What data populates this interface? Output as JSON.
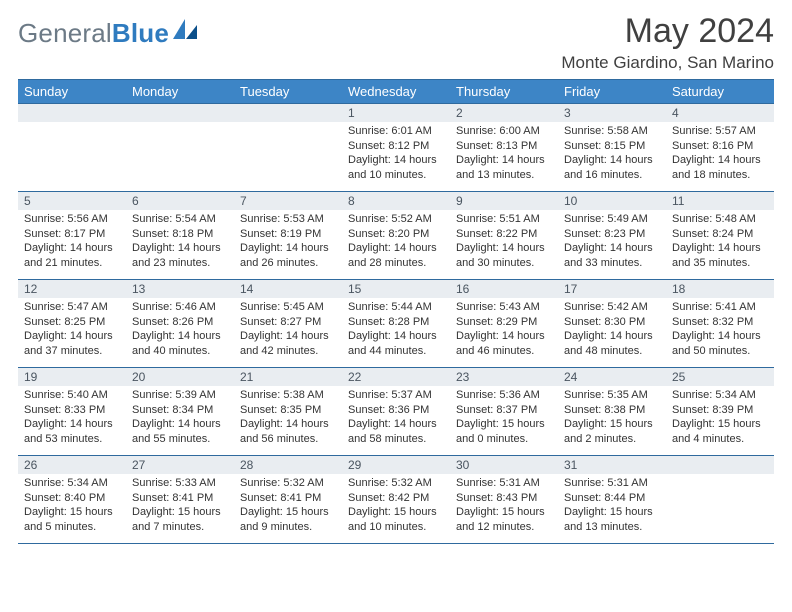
{
  "brand": {
    "word1": "General",
    "word2": "Blue"
  },
  "title": {
    "month": "May 2024",
    "location": "Monte Giardino, San Marino"
  },
  "colors": {
    "header_bg": "#3d85c6",
    "header_text": "#ffffff",
    "border": "#2f6a9e",
    "daynum_bg": "#e9edf1",
    "daynum_text": "#4a5560",
    "body_text": "#333333",
    "logo_gray": "#6c7a86",
    "logo_blue": "#2f7bbf",
    "title_text": "#404040"
  },
  "weekdays": [
    "Sunday",
    "Monday",
    "Tuesday",
    "Wednesday",
    "Thursday",
    "Friday",
    "Saturday"
  ],
  "weeks": [
    [
      {
        "n": "",
        "sr": "",
        "ss": "",
        "dl": ""
      },
      {
        "n": "",
        "sr": "",
        "ss": "",
        "dl": ""
      },
      {
        "n": "",
        "sr": "",
        "ss": "",
        "dl": ""
      },
      {
        "n": "1",
        "sr": "Sunrise: 6:01 AM",
        "ss": "Sunset: 8:12 PM",
        "dl": "Daylight: 14 hours and 10 minutes."
      },
      {
        "n": "2",
        "sr": "Sunrise: 6:00 AM",
        "ss": "Sunset: 8:13 PM",
        "dl": "Daylight: 14 hours and 13 minutes."
      },
      {
        "n": "3",
        "sr": "Sunrise: 5:58 AM",
        "ss": "Sunset: 8:15 PM",
        "dl": "Daylight: 14 hours and 16 minutes."
      },
      {
        "n": "4",
        "sr": "Sunrise: 5:57 AM",
        "ss": "Sunset: 8:16 PM",
        "dl": "Daylight: 14 hours and 18 minutes."
      }
    ],
    [
      {
        "n": "5",
        "sr": "Sunrise: 5:56 AM",
        "ss": "Sunset: 8:17 PM",
        "dl": "Daylight: 14 hours and 21 minutes."
      },
      {
        "n": "6",
        "sr": "Sunrise: 5:54 AM",
        "ss": "Sunset: 8:18 PM",
        "dl": "Daylight: 14 hours and 23 minutes."
      },
      {
        "n": "7",
        "sr": "Sunrise: 5:53 AM",
        "ss": "Sunset: 8:19 PM",
        "dl": "Daylight: 14 hours and 26 minutes."
      },
      {
        "n": "8",
        "sr": "Sunrise: 5:52 AM",
        "ss": "Sunset: 8:20 PM",
        "dl": "Daylight: 14 hours and 28 minutes."
      },
      {
        "n": "9",
        "sr": "Sunrise: 5:51 AM",
        "ss": "Sunset: 8:22 PM",
        "dl": "Daylight: 14 hours and 30 minutes."
      },
      {
        "n": "10",
        "sr": "Sunrise: 5:49 AM",
        "ss": "Sunset: 8:23 PM",
        "dl": "Daylight: 14 hours and 33 minutes."
      },
      {
        "n": "11",
        "sr": "Sunrise: 5:48 AM",
        "ss": "Sunset: 8:24 PM",
        "dl": "Daylight: 14 hours and 35 minutes."
      }
    ],
    [
      {
        "n": "12",
        "sr": "Sunrise: 5:47 AM",
        "ss": "Sunset: 8:25 PM",
        "dl": "Daylight: 14 hours and 37 minutes."
      },
      {
        "n": "13",
        "sr": "Sunrise: 5:46 AM",
        "ss": "Sunset: 8:26 PM",
        "dl": "Daylight: 14 hours and 40 minutes."
      },
      {
        "n": "14",
        "sr": "Sunrise: 5:45 AM",
        "ss": "Sunset: 8:27 PM",
        "dl": "Daylight: 14 hours and 42 minutes."
      },
      {
        "n": "15",
        "sr": "Sunrise: 5:44 AM",
        "ss": "Sunset: 8:28 PM",
        "dl": "Daylight: 14 hours and 44 minutes."
      },
      {
        "n": "16",
        "sr": "Sunrise: 5:43 AM",
        "ss": "Sunset: 8:29 PM",
        "dl": "Daylight: 14 hours and 46 minutes."
      },
      {
        "n": "17",
        "sr": "Sunrise: 5:42 AM",
        "ss": "Sunset: 8:30 PM",
        "dl": "Daylight: 14 hours and 48 minutes."
      },
      {
        "n": "18",
        "sr": "Sunrise: 5:41 AM",
        "ss": "Sunset: 8:32 PM",
        "dl": "Daylight: 14 hours and 50 minutes."
      }
    ],
    [
      {
        "n": "19",
        "sr": "Sunrise: 5:40 AM",
        "ss": "Sunset: 8:33 PM",
        "dl": "Daylight: 14 hours and 53 minutes."
      },
      {
        "n": "20",
        "sr": "Sunrise: 5:39 AM",
        "ss": "Sunset: 8:34 PM",
        "dl": "Daylight: 14 hours and 55 minutes."
      },
      {
        "n": "21",
        "sr": "Sunrise: 5:38 AM",
        "ss": "Sunset: 8:35 PM",
        "dl": "Daylight: 14 hours and 56 minutes."
      },
      {
        "n": "22",
        "sr": "Sunrise: 5:37 AM",
        "ss": "Sunset: 8:36 PM",
        "dl": "Daylight: 14 hours and 58 minutes."
      },
      {
        "n": "23",
        "sr": "Sunrise: 5:36 AM",
        "ss": "Sunset: 8:37 PM",
        "dl": "Daylight: 15 hours and 0 minutes."
      },
      {
        "n": "24",
        "sr": "Sunrise: 5:35 AM",
        "ss": "Sunset: 8:38 PM",
        "dl": "Daylight: 15 hours and 2 minutes."
      },
      {
        "n": "25",
        "sr": "Sunrise: 5:34 AM",
        "ss": "Sunset: 8:39 PM",
        "dl": "Daylight: 15 hours and 4 minutes."
      }
    ],
    [
      {
        "n": "26",
        "sr": "Sunrise: 5:34 AM",
        "ss": "Sunset: 8:40 PM",
        "dl": "Daylight: 15 hours and 5 minutes."
      },
      {
        "n": "27",
        "sr": "Sunrise: 5:33 AM",
        "ss": "Sunset: 8:41 PM",
        "dl": "Daylight: 15 hours and 7 minutes."
      },
      {
        "n": "28",
        "sr": "Sunrise: 5:32 AM",
        "ss": "Sunset: 8:41 PM",
        "dl": "Daylight: 15 hours and 9 minutes."
      },
      {
        "n": "29",
        "sr": "Sunrise: 5:32 AM",
        "ss": "Sunset: 8:42 PM",
        "dl": "Daylight: 15 hours and 10 minutes."
      },
      {
        "n": "30",
        "sr": "Sunrise: 5:31 AM",
        "ss": "Sunset: 8:43 PM",
        "dl": "Daylight: 15 hours and 12 minutes."
      },
      {
        "n": "31",
        "sr": "Sunrise: 5:31 AM",
        "ss": "Sunset: 8:44 PM",
        "dl": "Daylight: 15 hours and 13 minutes."
      },
      {
        "n": "",
        "sr": "",
        "ss": "",
        "dl": ""
      }
    ]
  ]
}
